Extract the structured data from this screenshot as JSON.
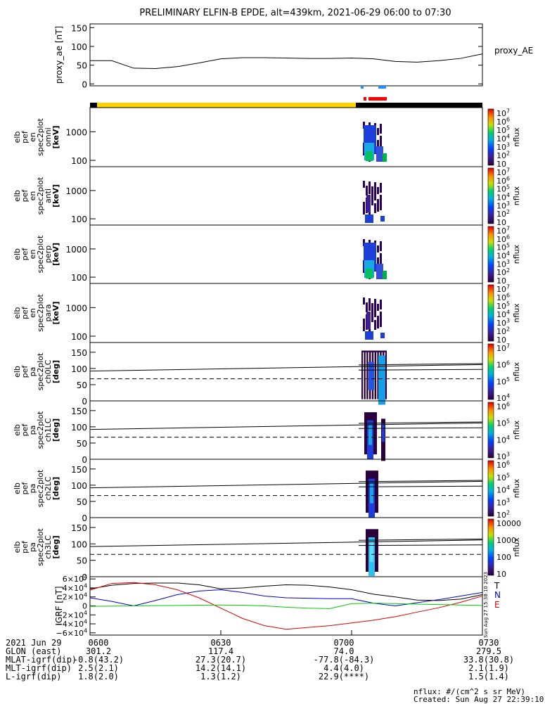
{
  "title": "PRELIMINARY ELFIN-B EPDE, alt=439km, 2021-06-29 06:00 to 07:30",
  "colors": {
    "yellow_bar": "#ffd200",
    "black_bar": "#000000",
    "science_red": "#ff0000",
    "science_blue": "#1e90ff",
    "b_x": "#000000",
    "b_y": "#0000cc",
    "b_z": "#dd0000",
    "b_e": "#00cc00"
  },
  "chart_data": [
    {
      "type": "line",
      "ylabel": "proxy_ae [nT]",
      "legend": "proxy_AE",
      "ylim": [
        -5,
        160
      ],
      "yticks": [
        "150",
        "100",
        "50",
        "0"
      ],
      "x_minutes": [
        0,
        5,
        10,
        15,
        20,
        25,
        30,
        35,
        40,
        45,
        50,
        55,
        60,
        65,
        70,
        75,
        80,
        85,
        90
      ],
      "values": [
        62,
        62,
        42,
        41,
        46,
        56,
        67,
        70,
        70,
        69,
        68,
        68,
        69,
        67,
        60,
        58,
        62,
        68,
        80
      ]
    },
    {
      "type": "heatmap",
      "ylabel": [
        "elb",
        "pef",
        "en",
        "spec2plot",
        "omni",
        "[keV]"
      ],
      "yticks": [
        "1000",
        "100"
      ],
      "cbar_label": "nflux",
      "cbar_ticks": [
        "10^7",
        "10^6",
        "10^5",
        "10^4",
        "10^3",
        "10^2",
        "10"
      ],
      "log_y": true
    },
    {
      "type": "heatmap",
      "ylabel": [
        "elb",
        "pef",
        "en",
        "spec2plot",
        "anti",
        "[keV]"
      ],
      "yticks": [
        "1000",
        "100"
      ],
      "cbar_label": "nflux",
      "cbar_ticks": [
        "10^7",
        "10^6",
        "10^5",
        "10^4",
        "10^3",
        "10^2",
        "10"
      ],
      "log_y": true
    },
    {
      "type": "heatmap",
      "ylabel": [
        "elb",
        "pef",
        "en",
        "spec2plot",
        "perp",
        "[keV]"
      ],
      "yticks": [
        "1000",
        "100"
      ],
      "cbar_label": "nflux",
      "cbar_ticks": [
        "10^7",
        "10^6",
        "10^5",
        "10^4",
        "10^3",
        "10^2",
        "10"
      ],
      "log_y": true
    },
    {
      "type": "heatmap",
      "ylabel": [
        "elb",
        "pef",
        "en",
        "spec2plot",
        "para",
        "[keV]"
      ],
      "yticks": [
        "1000",
        "100"
      ],
      "cbar_label": "nflux",
      "cbar_ticks": [
        "10^7",
        "10^6",
        "10^5",
        "10^4",
        "10^3",
        "10^2",
        "10"
      ],
      "log_y": true
    },
    {
      "type": "heatmap",
      "ylabel": [
        "elb",
        "pef",
        "pa",
        "spec2plot",
        "ch0LC",
        "[deg]"
      ],
      "yticks": [
        "150",
        "100",
        "50",
        "0"
      ],
      "ylim": [
        0,
        180
      ],
      "cbar_label": "nflux",
      "cbar_ticks": [
        "10^7",
        "10^6",
        "10^5",
        "10^4"
      ],
      "lines": {
        "upper": [
          111,
          131
        ],
        "lower": [
          92,
          112
        ],
        "dashed": 68
      }
    },
    {
      "type": "heatmap",
      "ylabel": [
        "elb",
        "pef",
        "pa",
        "spec2plot",
        "ch1LC",
        "[deg]"
      ],
      "yticks": [
        "150",
        "100",
        "50",
        "0"
      ],
      "ylim": [
        0,
        180
      ],
      "cbar_label": "nflux",
      "cbar_ticks": [
        "10^6",
        "10^5",
        "10^4",
        "10^3"
      ],
      "lines": {
        "upper": [
          111,
          131
        ],
        "lower": [
          92,
          112
        ],
        "dashed": 68
      }
    },
    {
      "type": "heatmap",
      "ylabel": [
        "elb",
        "pef",
        "pa",
        "spec2plot",
        "ch2LC",
        "[deg]"
      ],
      "yticks": [
        "150",
        "100",
        "50",
        "0"
      ],
      "ylim": [
        0,
        180
      ],
      "cbar_label": "nflux",
      "cbar_ticks": [
        "10^6",
        "10^5",
        "10^4",
        "10^3",
        "10^2"
      ],
      "lines": {
        "upper": [
          111,
          131
        ],
        "lower": [
          92,
          112
        ],
        "dashed": 68
      }
    },
    {
      "type": "heatmap",
      "ylabel": [
        "elb",
        "pef",
        "pa",
        "spec2plot",
        "ch3LC",
        "[deg]"
      ],
      "yticks": [
        "150",
        "100",
        "50",
        "0"
      ],
      "ylim": [
        0,
        180
      ],
      "cbar_label": "nflux",
      "cbar_ticks": [
        "10000",
        "1000",
        "100",
        "10"
      ],
      "lines": {
        "upper": [
          111,
          131
        ],
        "lower": [
          92,
          112
        ],
        "dashed": 68
      }
    },
    {
      "type": "line",
      "ylabel": "IGRF [nT]",
      "ylim": [
        -65000,
        65000
      ],
      "yticks": [
        "6×10^4",
        "4×10^4",
        "2×10^4",
        "0",
        "−2×10^4",
        "−4×10^4",
        "−6×10^4"
      ],
      "x_minutes": [
        0,
        5,
        10,
        15,
        20,
        25,
        30,
        35,
        40,
        45,
        50,
        55,
        60,
        65,
        70,
        75,
        80,
        85,
        90
      ],
      "series": [
        {
          "name": "T",
          "values": [
            38000,
            46000,
            50000,
            51000,
            51000,
            47000,
            38000,
            40000,
            44000,
            47000,
            46000,
            42000,
            36000,
            26000,
            20000,
            13000,
            12000,
            15000,
            25000
          ]
        },
        {
          "name": "N",
          "values": [
            18000,
            10000,
            0,
            12000,
            25000,
            33000,
            36000,
            30000,
            22000,
            18000,
            17000,
            16000,
            16000,
            6000,
            0,
            7000,
            14000,
            22000,
            30000
          ]
        },
        {
          "name": "E",
          "values": [
            35000,
            50000,
            52000,
            47000,
            36000,
            18000,
            -5000,
            -28000,
            -44000,
            -52000,
            -48000,
            -44000,
            -38000,
            -32000,
            -24000,
            -14000,
            -4000,
            8000,
            22000
          ]
        },
        {
          "name": "",
          "values": [
            -1000,
            -500,
            0,
            500,
            1000,
            1500,
            2000,
            1500,
            0,
            -3000,
            -5000,
            -6000,
            5000,
            6000,
            5000,
            4000,
            3000,
            2000,
            1000
          ]
        }
      ],
      "vertical_label": "Sun Aug 27 15:38:10 2023"
    }
  ],
  "xaxis": {
    "rows": [
      {
        "label": "2021 Jun 29",
        "values": [
          "0600",
          "0630",
          "0700",
          "0730"
        ]
      },
      {
        "label": "GLON (east)",
        "values": [
          "301.2",
          "117.4",
          "74.0",
          "279.5"
        ]
      },
      {
        "label": "MLAT-igrf(dip)",
        "values": [
          "-0.8(43.2)",
          "27.3(20.7)",
          "-77.8(-84.3)",
          "33.8(30.8)"
        ]
      },
      {
        "label": "MLT-igrf(dip)",
        "values": [
          "2.5(2.1)",
          "14.2(14.1)",
          "4.4(4.0)",
          "2.1(1.9)"
        ]
      },
      {
        "label": "L-igrf(dip)",
        "values": [
          "1.8(2.0)",
          "1.3(1.2)",
          "22.9(****)",
          "1.5(1.4)"
        ]
      }
    ]
  },
  "footer": {
    "units": "nflux: #/(cm^2 s sr MeV)",
    "created": "Created: Sun Aug 27 22:39:10 2023"
  }
}
